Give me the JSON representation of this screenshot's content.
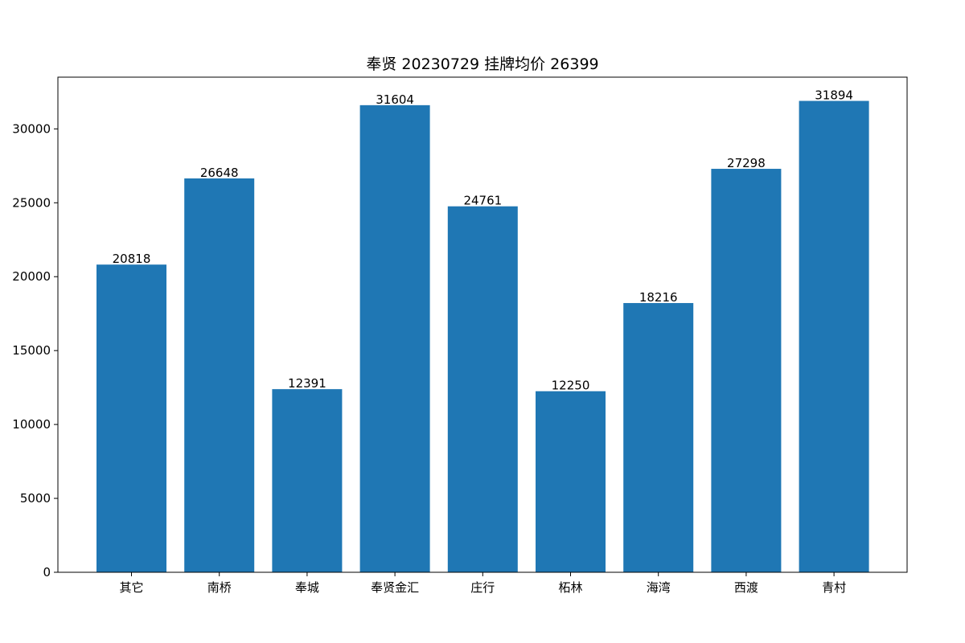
{
  "chart_data": {
    "type": "bar",
    "title": "奉贤 20230729 挂牌均价 26399",
    "xlabel": "",
    "ylabel": "",
    "categories": [
      "其它",
      "南桥",
      "奉城",
      "奉贤金汇",
      "庄行",
      "柘林",
      "海湾",
      "西渡",
      "青村"
    ],
    "values": [
      20818,
      26648,
      12391,
      31604,
      24761,
      12250,
      18216,
      27298,
      31894
    ],
    "value_labels": [
      "20818",
      "26648",
      "12391",
      "31604",
      "24761",
      "12250",
      "18216",
      "27298",
      "31894"
    ],
    "ylim": [
      0,
      33500
    ],
    "yticks": [
      0,
      5000,
      10000,
      15000,
      20000,
      25000,
      30000
    ],
    "ytick_labels": [
      "0",
      "5000",
      "10000",
      "15000",
      "20000",
      "25000",
      "30000"
    ],
    "grid": false,
    "legend": "none",
    "bar_color": "#1f77b4"
  }
}
